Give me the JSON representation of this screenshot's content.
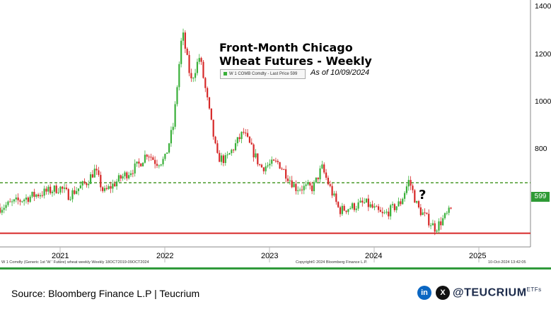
{
  "chart_data": {
    "type": "candlestick",
    "title_lines": [
      "Front-Month Chicago",
      "Wheat Futures - Weekly"
    ],
    "legend": "W 1 COMB Comdty - Last Price 599",
    "as_of": "As of 10/09/2024",
    "annotation": "?",
    "ylim": [
      460,
      1400
    ],
    "yticks": [
      800,
      1000,
      1200,
      1400
    ],
    "last_price": "599",
    "x_labels": [
      "2021",
      "2022",
      "2023",
      "2024",
      "2025"
    ],
    "reference_lines": [
      {
        "style": "dashed",
        "color": "#4a9a2a",
        "value": 700
      },
      {
        "style": "solid",
        "color": "#d62828",
        "value": 500
      }
    ],
    "series": [
      {
        "date": "2020-01",
        "value": 560
      },
      {
        "date": "2020-06",
        "value": 600
      },
      {
        "date": "2020-10",
        "value": 650
      },
      {
        "date": "2021-01",
        "value": 680
      },
      {
        "date": "2021-02",
        "value": 650
      },
      {
        "date": "2021-04",
        "value": 700
      },
      {
        "date": "2021-05",
        "value": 750
      },
      {
        "date": "2021-06",
        "value": 660
      },
      {
        "date": "2021-08",
        "value": 720
      },
      {
        "date": "2021-10",
        "value": 770
      },
      {
        "date": "2021-11",
        "value": 820
      },
      {
        "date": "2021-12",
        "value": 780
      },
      {
        "date": "2022-01",
        "value": 790
      },
      {
        "date": "2022-02",
        "value": 930
      },
      {
        "date": "2022-03",
        "value": 1300
      },
      {
        "date": "2022-04",
        "value": 1100
      },
      {
        "date": "2022-05",
        "value": 1200
      },
      {
        "date": "2022-06",
        "value": 1000
      },
      {
        "date": "2022-07",
        "value": 800
      },
      {
        "date": "2022-08",
        "value": 790
      },
      {
        "date": "2022-10",
        "value": 900
      },
      {
        "date": "2022-12",
        "value": 760
      },
      {
        "date": "2023-02",
        "value": 780
      },
      {
        "date": "2023-04",
        "value": 680
      },
      {
        "date": "2023-06",
        "value": 680
      },
      {
        "date": "2023-07",
        "value": 760
      },
      {
        "date": "2023-09",
        "value": 590
      },
      {
        "date": "2023-12",
        "value": 620
      },
      {
        "date": "2024-02",
        "value": 570
      },
      {
        "date": "2024-04",
        "value": 620
      },
      {
        "date": "2024-05",
        "value": 710
      },
      {
        "date": "2024-06",
        "value": 600
      },
      {
        "date": "2024-08",
        "value": 520
      },
      {
        "date": "2024-10",
        "value": 599
      }
    ]
  },
  "footer": {
    "bloomberg_left": "W 1 Comdty (Generic 1st 'W ' Future) wheat weekly  Weekly 18OCT2019-09OCT2024",
    "bloomberg_center": "Copyright© 2024 Bloomberg Finance L.P.",
    "bloomberg_right": "10-Oct-2024 13:42:05",
    "source": "Source: Bloomberg Finance L.P | Teucrium",
    "linkedin": "in",
    "x_icon": "X",
    "handle": "@TEUCRIUM",
    "handle_suffix": "ETFs"
  },
  "colors": {
    "up": "#3ab03a",
    "down": "#d62828",
    "dashed_line": "#4a9a2a",
    "red_line": "#d62828"
  }
}
